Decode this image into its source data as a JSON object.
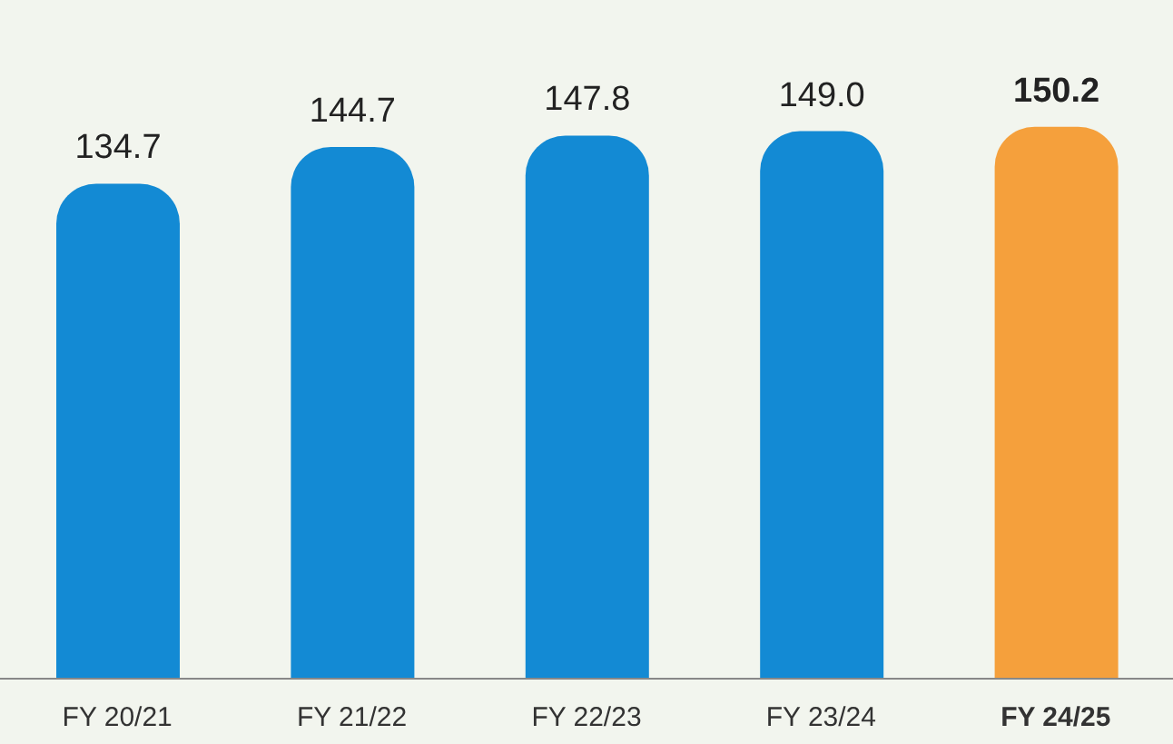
{
  "chart_data": {
    "type": "bar",
    "categories": [
      "FY 20/21",
      "FY 21/22",
      "FY 22/23",
      "FY 23/24",
      "FY 24/25"
    ],
    "values": [
      134.7,
      144.7,
      147.8,
      149.0,
      150.2
    ],
    "value_labels": [
      "134.7",
      "144.7",
      "147.8",
      "149.0",
      "150.2"
    ],
    "colors": [
      "#138ad4",
      "#138ad4",
      "#138ad4",
      "#138ad4",
      "#f5a03c"
    ]
  }
}
